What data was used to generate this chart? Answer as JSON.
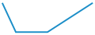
{
  "x": [
    0,
    3,
    4,
    9,
    10,
    20
  ],
  "y": [
    10,
    0,
    0,
    0,
    0,
    10
  ],
  "line_color": "#1b8ec8",
  "line_width": 1.4,
  "background_color": "#ffffff",
  "ylim": [
    -1,
    11
  ],
  "xlim": [
    -0.5,
    20.5
  ]
}
